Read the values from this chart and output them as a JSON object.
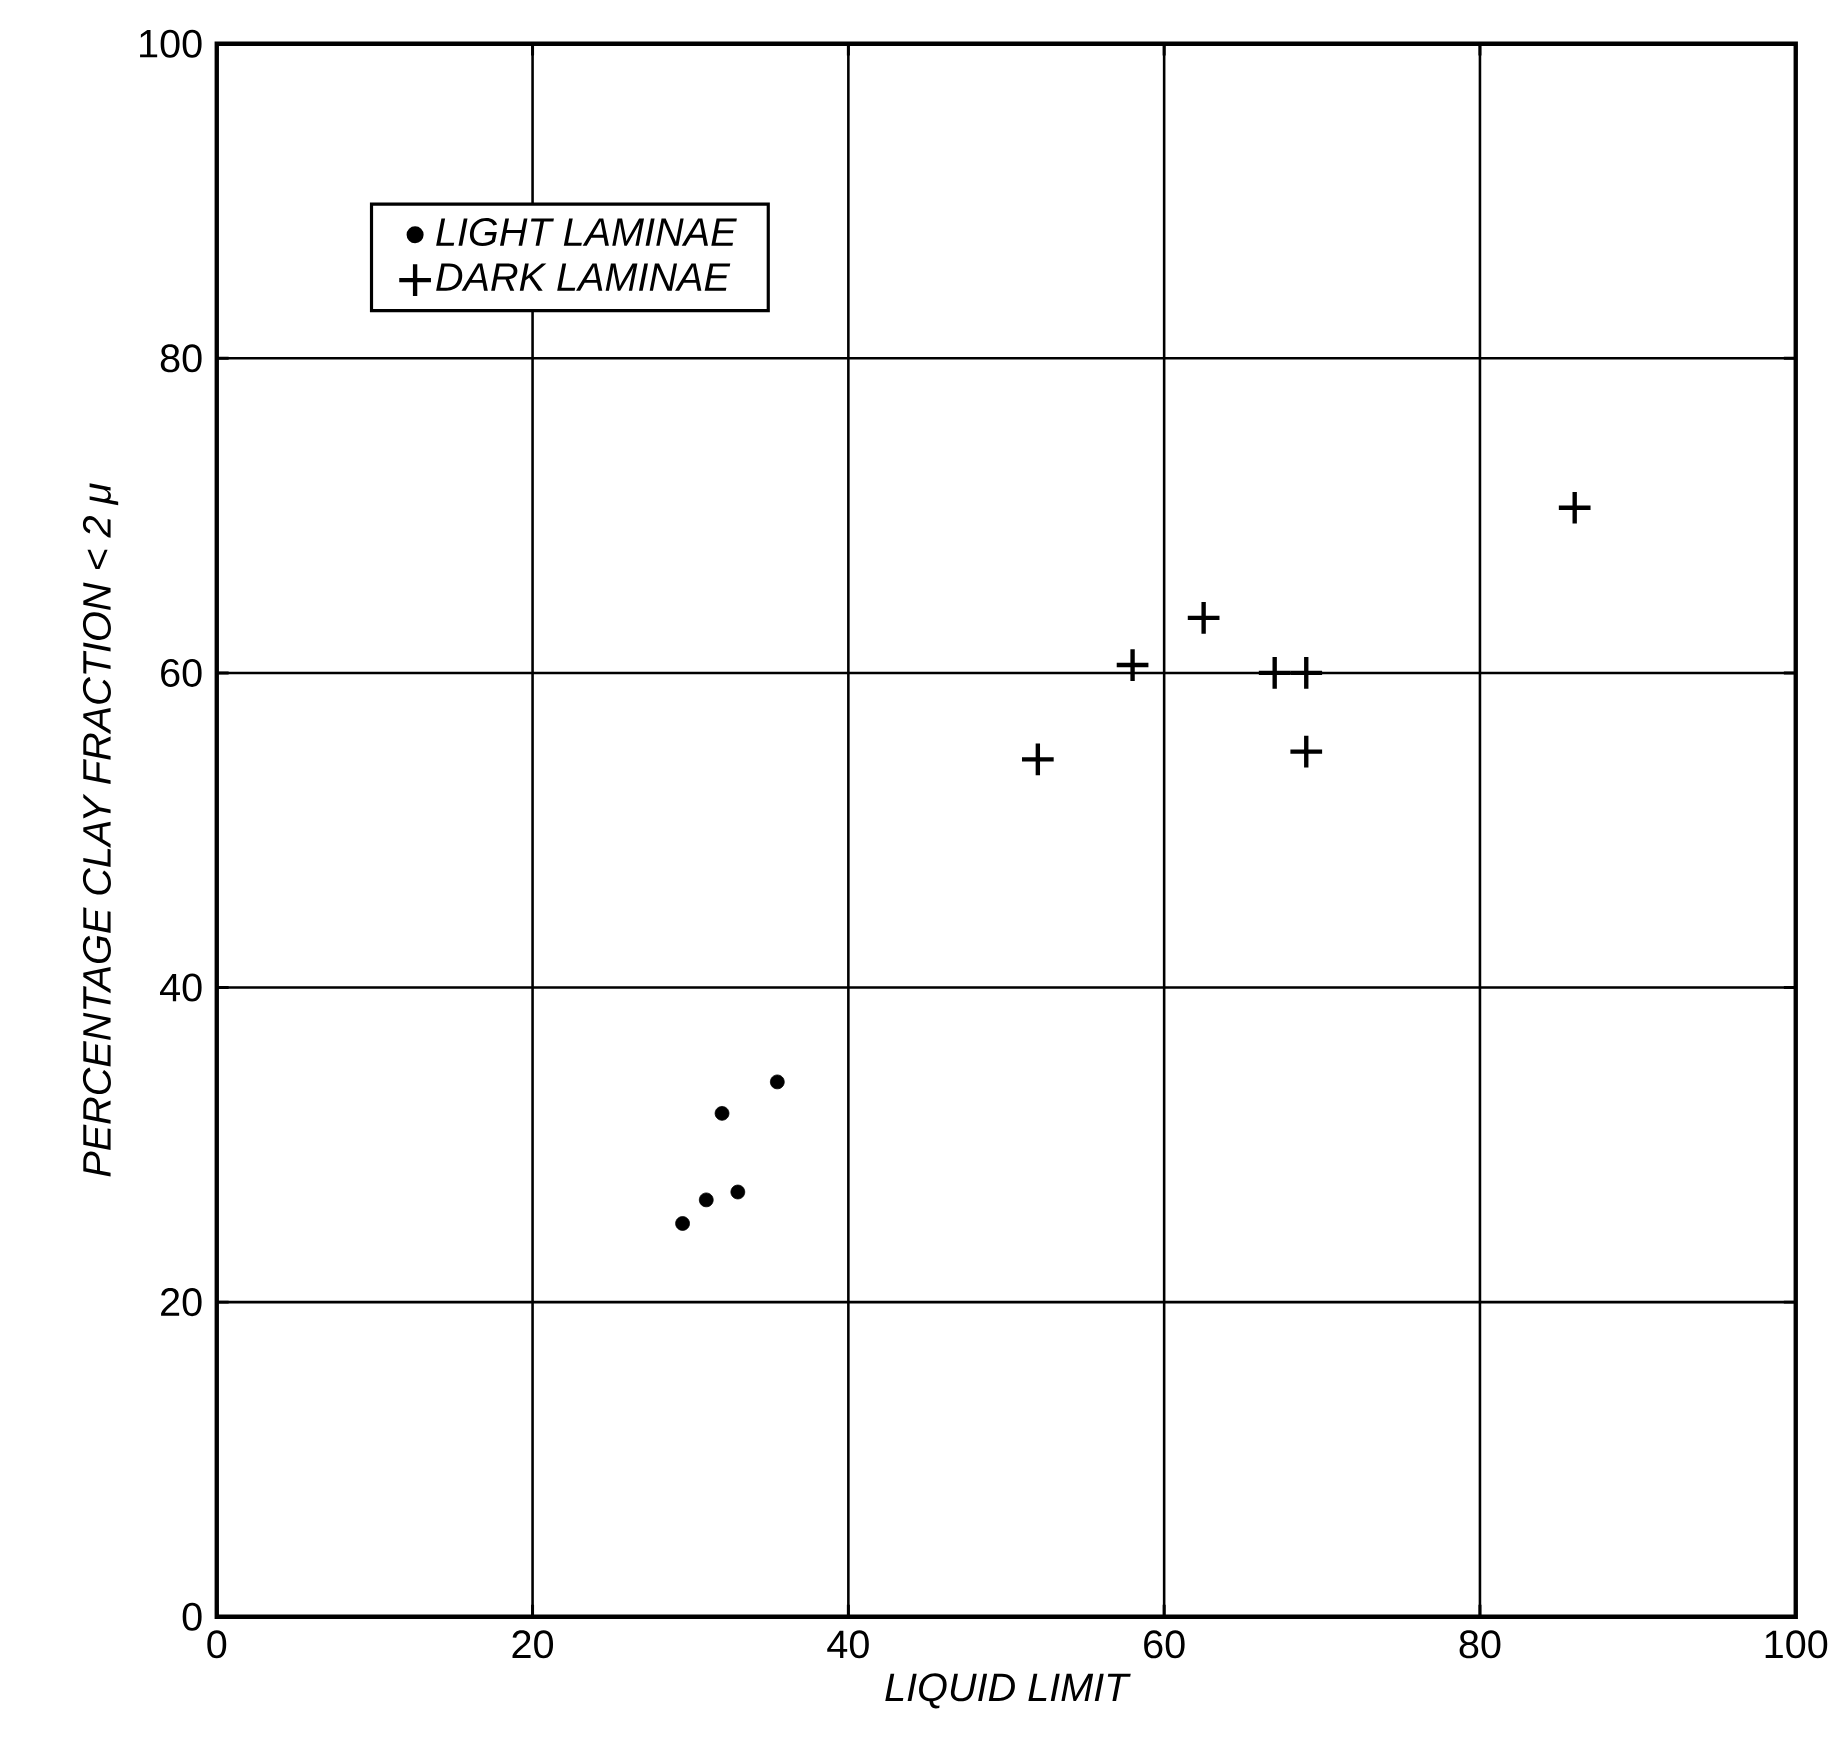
{
  "chart_data": {
    "type": "scatter",
    "xlabel": "LIQUID LIMIT",
    "ylabel": "PERCENTAGE CLAY FRACTION < 2 μ",
    "xlim": [
      0,
      100
    ],
    "ylim": [
      0,
      100
    ],
    "xticks": [
      0,
      20,
      40,
      60,
      80,
      100
    ],
    "yticks": [
      0,
      20,
      40,
      60,
      80,
      100
    ],
    "grid": true,
    "legend": "top left",
    "series": [
      {
        "name": "LIGHT LAMINAE",
        "color": "#000000",
        "marker": "circle",
        "x": [
          29.5,
          31,
          33,
          32,
          35.5
        ],
        "values": [
          25,
          26.5,
          27,
          32,
          34
        ]
      },
      {
        "name": "DARK LAMINAE",
        "color": "#000000",
        "marker": "cross",
        "x": [
          52,
          58,
          62.5,
          67,
          69,
          69,
          86
        ],
        "values": [
          54.5,
          60.5,
          63.5,
          60,
          60,
          55,
          70.5
        ]
      }
    ]
  }
}
